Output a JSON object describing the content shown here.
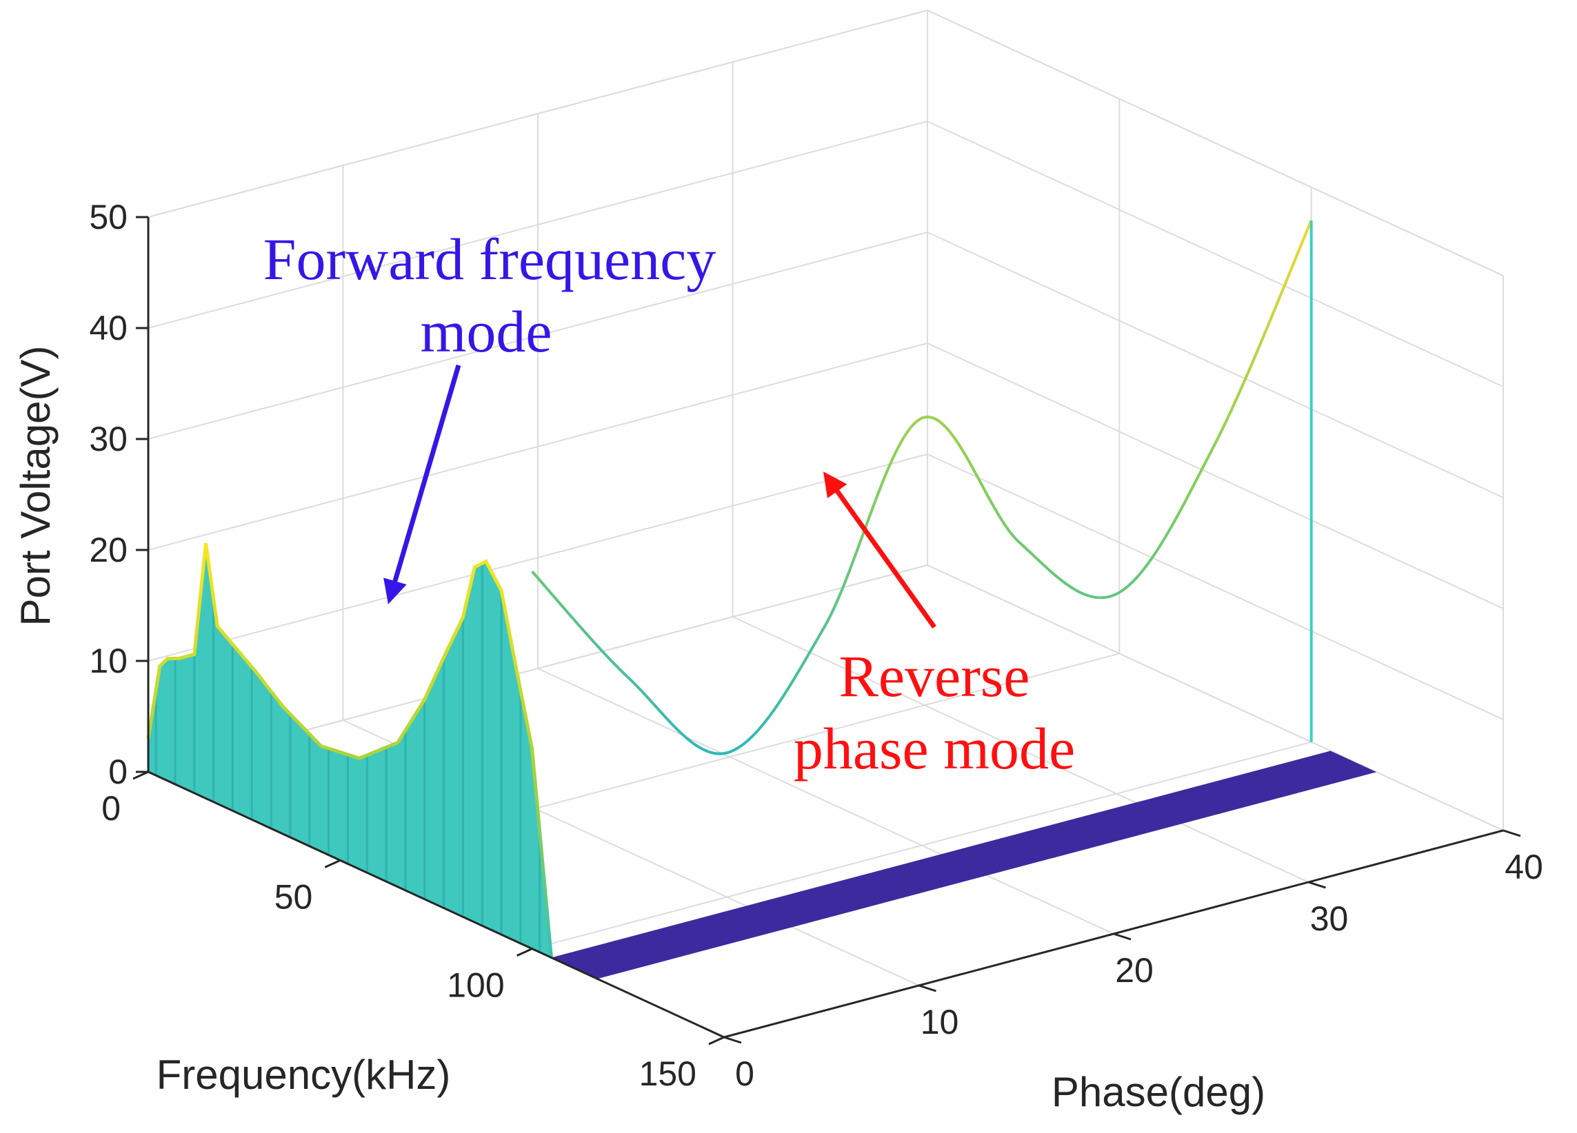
{
  "chart_data": {
    "type": "surface3d",
    "zlabel": "Port Voltage(V)",
    "xlabel": "Frequency(kHz)",
    "ylabel": "Phase(deg)",
    "z_ticks": [
      "0",
      "10",
      "20",
      "30",
      "40",
      "50"
    ],
    "x_ticks": [
      "0",
      "50",
      "100",
      "150"
    ],
    "y_ticks": [
      "0",
      "10",
      "20",
      "30",
      "40"
    ],
    "zlim": [
      0,
      50
    ],
    "xlim": [
      0,
      150
    ],
    "ylim": [
      0,
      40
    ],
    "grid": true,
    "colormap": "parula",
    "forward_frequency_curve": {
      "name": "Forward frequency mode",
      "phase_deg": 0,
      "frequency_khz": [
        0,
        3,
        5,
        8,
        12,
        15,
        18,
        22,
        28,
        35,
        45,
        55,
        65,
        72,
        78,
        82,
        85,
        88,
        92,
        95,
        100,
        105
      ],
      "voltage_v": [
        3,
        10,
        11,
        11.5,
        12.5,
        23,
        16,
        15,
        13.5,
        11.5,
        9.5,
        10,
        13,
        18,
        23.5,
        27,
        32,
        33,
        31,
        26,
        18,
        0
      ]
    },
    "reverse_phase_curve": {
      "name": "Reverse phase mode",
      "frequency_khz": 100,
      "phase_deg": [
        0,
        5,
        10,
        15,
        20,
        25,
        30,
        35,
        40
      ],
      "voltage_v": [
        34,
        22,
        13,
        22,
        38.5,
        25,
        18,
        29,
        47
      ]
    },
    "annotations": [
      {
        "line1": "Forward frequency",
        "line2": "mode",
        "color": "#3417e8"
      },
      {
        "line1": "Reverse",
        "line2": "phase mode",
        "color": "#ff1010"
      }
    ]
  }
}
